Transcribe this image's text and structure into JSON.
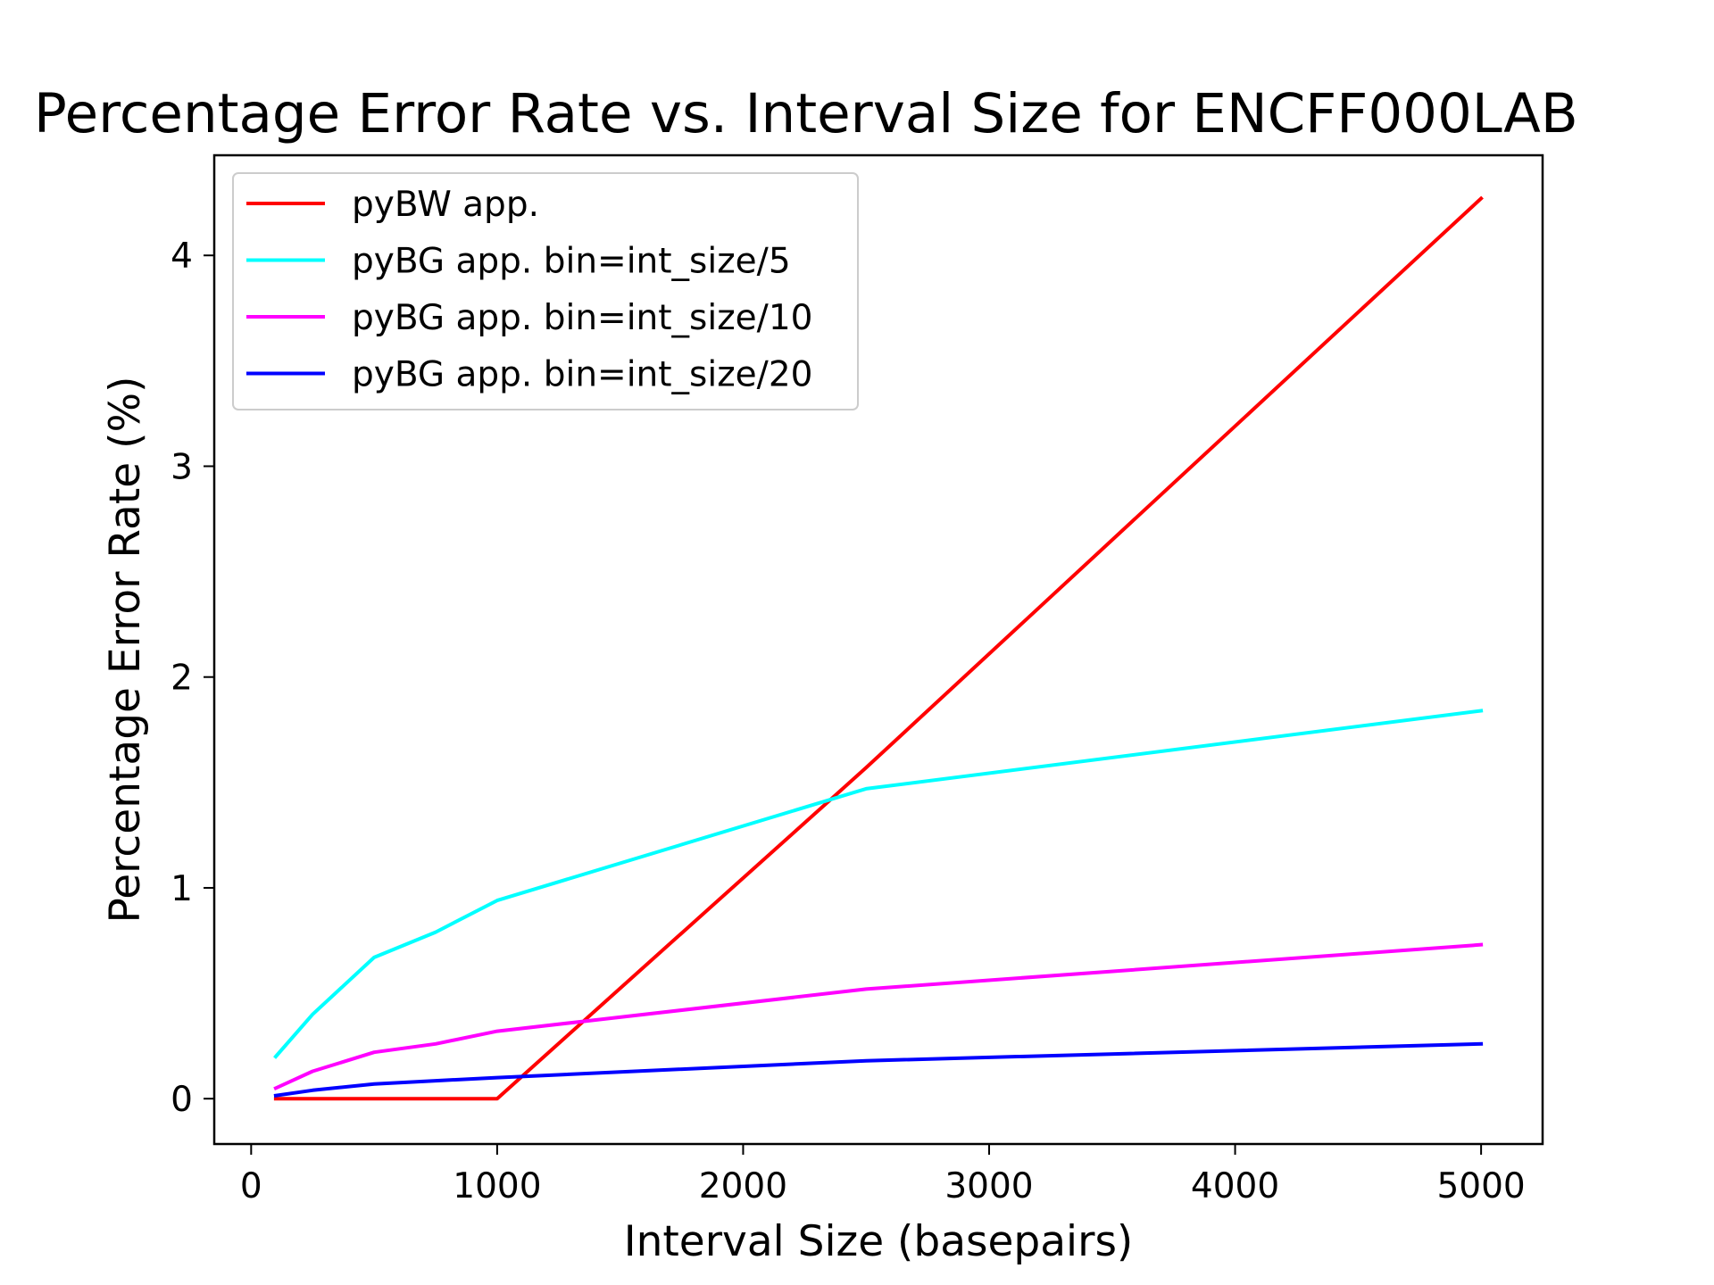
{
  "chart_data": {
    "type": "line",
    "title": "Percentage Error Rate vs. Interval Size for ENCFF000LAB",
    "xlabel": "Interval Size (basepairs)",
    "ylabel": "Percentage Error Rate (%)",
    "xlim": [
      -150,
      5250
    ],
    "ylim": [
      -0.215,
      4.475
    ],
    "xticks": [
      0,
      1000,
      2000,
      3000,
      4000,
      5000
    ],
    "yticks": [
      0,
      1,
      2,
      3,
      4
    ],
    "grid": false,
    "legend_position": "upper-left",
    "series": [
      {
        "name": "pyBW app.",
        "color": "#ff0000",
        "x": [
          100,
          250,
          500,
          750,
          1000,
          2500,
          5000
        ],
        "y": [
          0.0,
          0.0,
          0.0,
          0.0,
          0.0,
          1.57,
          4.27
        ]
      },
      {
        "name": "pyBG app. bin=int_size/5",
        "color": "#00ffff",
        "x": [
          100,
          250,
          500,
          750,
          1000,
          2500,
          5000
        ],
        "y": [
          0.2,
          0.4,
          0.67,
          0.79,
          0.94,
          1.47,
          1.84
        ]
      },
      {
        "name": "pyBG app. bin=int_size/10",
        "color": "#ff00ff",
        "x": [
          100,
          250,
          500,
          750,
          1000,
          2500,
          5000
        ],
        "y": [
          0.05,
          0.13,
          0.22,
          0.26,
          0.32,
          0.52,
          0.73
        ]
      },
      {
        "name": "pyBG app. bin=int_size/20",
        "color": "#0000ff",
        "x": [
          100,
          250,
          500,
          750,
          1000,
          2500,
          5000
        ],
        "y": [
          0.015,
          0.04,
          0.07,
          0.085,
          0.1,
          0.18,
          0.26
        ]
      }
    ]
  }
}
